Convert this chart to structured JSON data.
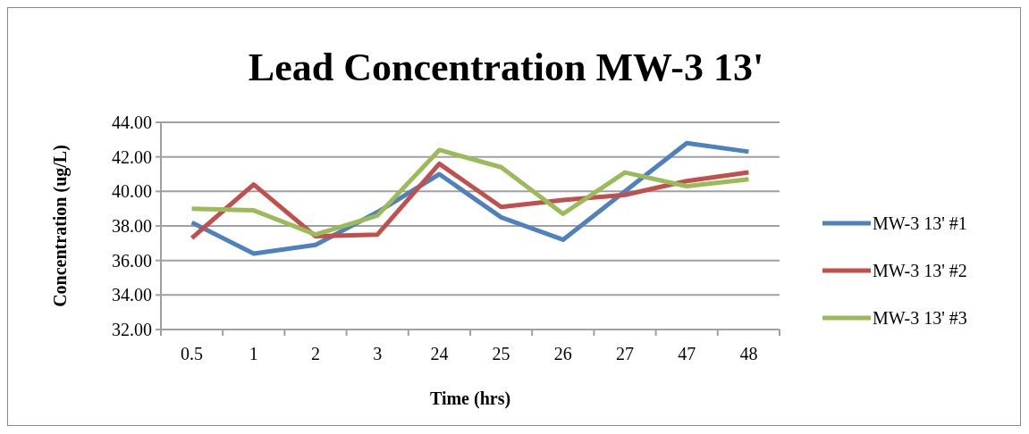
{
  "chart_data": {
    "type": "line",
    "title": "Lead Concentration MW-3 13'",
    "xlabel": "Time (hrs)",
    "ylabel": "Concentration (ug/L)",
    "categories": [
      "0.5",
      "1",
      "2",
      "3",
      "24",
      "25",
      "26",
      "27",
      "47",
      "48"
    ],
    "series": [
      {
        "name": "MW-3 13' #1",
        "color": "#4f81bd",
        "values": [
          38.2,
          36.4,
          36.9,
          38.8,
          41.0,
          38.5,
          37.2,
          40.0,
          42.8,
          42.3
        ]
      },
      {
        "name": "MW-3 13' #2",
        "color": "#c0504d",
        "values": [
          37.3,
          40.4,
          37.4,
          37.5,
          41.6,
          39.1,
          39.5,
          39.8,
          40.6,
          41.1
        ]
      },
      {
        "name": "MW-3 13' #3",
        "color": "#9bbb59",
        "values": [
          39.0,
          38.9,
          37.5,
          38.6,
          42.4,
          41.4,
          38.7,
          41.1,
          40.3,
          40.7
        ]
      }
    ],
    "ylim": [
      32,
      44
    ],
    "yticks": [
      {
        "value": 32,
        "label": "32.00"
      },
      {
        "value": 34,
        "label": "34.00"
      },
      {
        "value": 36,
        "label": "36.00"
      },
      {
        "value": 38,
        "label": "38.00"
      },
      {
        "value": 40,
        "label": "40.00"
      },
      {
        "value": 42,
        "label": "42.00"
      },
      {
        "value": 44,
        "label": "44.00"
      }
    ],
    "grid": "y",
    "legend": "right",
    "marker": "none",
    "line_style": "solid"
  }
}
